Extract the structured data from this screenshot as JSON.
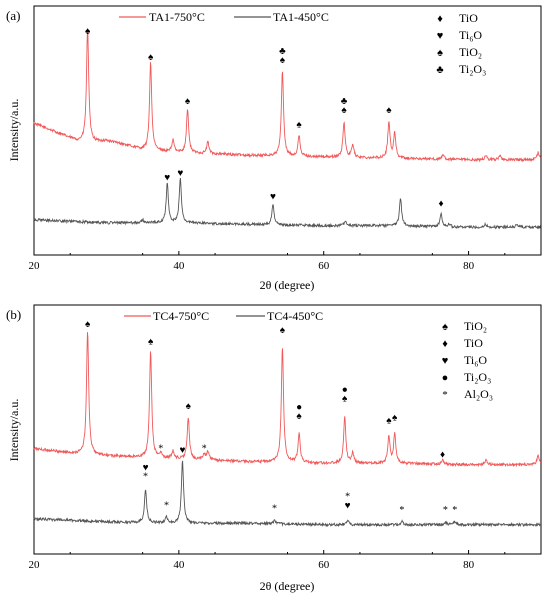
{
  "chart_data": [
    {
      "type": "line",
      "panel_label": "(a)",
      "xlabel": "2θ (degree)",
      "ylabel": "Intensity/a.u.",
      "xlim": [
        20,
        90
      ],
      "x_ticks": [
        20,
        40,
        60,
        80
      ],
      "legend": [
        {
          "name": "TA1-750°C",
          "color": "#f0595a"
        },
        {
          "name": "TA1-450°C",
          "color": "#555555"
        }
      ],
      "series": [
        {
          "name": "TA1-750°C",
          "color": "#f0595a",
          "offset": 0.72,
          "baseline": [
            [
              20,
              0.18
            ],
            [
              23,
              0.12
            ],
            [
              26,
              0.06
            ],
            [
              28,
              0.05
            ],
            [
              30,
              0.06
            ],
            [
              32,
              0.04
            ],
            [
              35,
              0.0
            ],
            [
              40,
              -0.02
            ],
            [
              50,
              -0.04
            ],
            [
              60,
              -0.05
            ],
            [
              70,
              -0.06
            ],
            [
              80,
              -0.07
            ],
            [
              90,
              -0.07
            ]
          ],
          "peaks": [
            [
              27.4,
              0.78
            ],
            [
              36.1,
              0.6
            ],
            [
              39.2,
              0.08
            ],
            [
              41.2,
              0.3
            ],
            [
              44.0,
              0.08
            ],
            [
              54.3,
              0.58
            ],
            [
              56.6,
              0.14
            ],
            [
              62.8,
              0.24
            ],
            [
              64.0,
              0.09
            ],
            [
              69.0,
              0.25
            ],
            [
              69.8,
              0.17
            ],
            [
              76.5,
              0.03
            ],
            [
              82.4,
              0.03
            ],
            [
              84.3,
              0.03
            ],
            [
              89.6,
              0.05
            ]
          ]
        },
        {
          "name": "TA1-450°C",
          "color": "#555555",
          "offset": 0.22,
          "baseline": [
            [
              20,
              0.02
            ],
            [
              30,
              0.0
            ],
            [
              40,
              0.0
            ],
            [
              50,
              -0.01
            ],
            [
              60,
              -0.02
            ],
            [
              70,
              -0.02
            ],
            [
              80,
              -0.03
            ],
            [
              90,
              -0.03
            ]
          ],
          "peaks": [
            [
              35.0,
              0.02
            ],
            [
              38.4,
              0.27
            ],
            [
              40.2,
              0.3
            ],
            [
              53.0,
              0.14
            ],
            [
              63.0,
              0.03
            ],
            [
              70.6,
              0.19
            ],
            [
              76.2,
              0.09
            ],
            [
              77.3,
              0.02
            ],
            [
              82.3,
              0.02
            ],
            [
              86.7,
              0.02
            ]
          ]
        }
      ],
      "phase_legend": [
        {
          "symbol": "♦",
          "label": "TiO"
        },
        {
          "symbol": "♥",
          "label": "Ti₆O"
        },
        {
          "symbol": "♠",
          "label": "TiO₂"
        },
        {
          "symbol": "♣",
          "label": "Ti₂O₃"
        }
      ],
      "markers": [
        {
          "x": 27.4,
          "y": 1.51,
          "symbols": [
            "♠"
          ]
        },
        {
          "x": 36.1,
          "y": 1.33,
          "symbols": [
            "♠"
          ]
        },
        {
          "x": 41.2,
          "y": 1.03,
          "symbols": [
            "♠"
          ]
        },
        {
          "x": 54.3,
          "y": 1.31,
          "symbols": [
            "♣",
            "♠"
          ]
        },
        {
          "x": 56.6,
          "y": 0.87,
          "symbols": [
            "♠"
          ]
        },
        {
          "x": 62.8,
          "y": 0.97,
          "symbols": [
            "♣",
            "♠"
          ]
        },
        {
          "x": 69.0,
          "y": 0.97,
          "symbols": [
            "♠"
          ]
        },
        {
          "x": 38.4,
          "y": 0.51,
          "symbols": [
            "♥"
          ]
        },
        {
          "x": 40.2,
          "y": 0.54,
          "symbols": [
            "♥"
          ]
        },
        {
          "x": 53.0,
          "y": 0.38,
          "symbols": [
            "♥"
          ]
        },
        {
          "x": 76.2,
          "y": 0.33,
          "symbols": [
            "♦"
          ]
        }
      ]
    },
    {
      "type": "line",
      "panel_label": "(b)",
      "xlabel": "2θ (degree)",
      "ylabel": "Intensity/a.u.",
      "xlim": [
        20,
        90
      ],
      "x_ticks": [
        20,
        40,
        60,
        80
      ],
      "legend": [
        {
          "name": "TC4-750°C",
          "color": "#f0595a"
        },
        {
          "name": "TC4-450°C",
          "color": "#555555"
        }
      ],
      "series": [
        {
          "name": "TC4-750°C",
          "color": "#f0595a",
          "offset": 0.72,
          "baseline": [
            [
              20,
              0.0
            ],
            [
              25,
              -0.03
            ],
            [
              30,
              -0.05
            ],
            [
              40,
              -0.07
            ],
            [
              50,
              -0.09
            ],
            [
              60,
              -0.1
            ],
            [
              70,
              -0.1
            ],
            [
              80,
              -0.11
            ],
            [
              90,
              -0.11
            ]
          ],
          "peaks": [
            [
              27.4,
              0.84
            ],
            [
              36.1,
              0.73
            ],
            [
              37.5,
              0.03
            ],
            [
              39.2,
              0.05
            ],
            [
              41.3,
              0.28
            ],
            [
              43.5,
              0.04
            ],
            [
              44.0,
              0.06
            ],
            [
              54.3,
              0.79
            ],
            [
              56.6,
              0.2
            ],
            [
              62.9,
              0.32
            ],
            [
              64.0,
              0.07
            ],
            [
              69.0,
              0.18
            ],
            [
              69.8,
              0.2
            ],
            [
              76.4,
              0.03
            ],
            [
              82.4,
              0.03
            ],
            [
              89.6,
              0.06
            ]
          ]
        },
        {
          "name": "TC4-450°C",
          "color": "#555555",
          "offset": 0.22,
          "baseline": [
            [
              20,
              0.02
            ],
            [
              30,
              0.0
            ],
            [
              40,
              -0.01
            ],
            [
              50,
              -0.01
            ],
            [
              60,
              -0.02
            ],
            [
              70,
              -0.02
            ],
            [
              80,
              -0.02
            ],
            [
              90,
              -0.02
            ]
          ],
          "peaks": [
            [
              35.4,
              0.23
            ],
            [
              38.3,
              0.04
            ],
            [
              40.5,
              0.43
            ],
            [
              53.2,
              0.02
            ],
            [
              63.3,
              0.03
            ],
            [
              70.8,
              0.02
            ],
            [
              76.8,
              0.02
            ],
            [
              78.1,
              0.02
            ]
          ]
        }
      ],
      "phase_legend": [
        {
          "symbol": "♠",
          "label": "TiO₂"
        },
        {
          "symbol": "♦",
          "label": "TiO"
        },
        {
          "symbol": "♥",
          "label": "Ti₆O"
        },
        {
          "symbol": "●",
          "label": "Ti₂O₃"
        },
        {
          "symbol": "*",
          "label": "Al₂O₃"
        }
      ],
      "markers": [
        {
          "x": 27.4,
          "y": 1.55,
          "symbols": [
            "♠"
          ]
        },
        {
          "x": 36.1,
          "y": 1.43,
          "symbols": [
            "♠"
          ]
        },
        {
          "x": 41.3,
          "y": 0.99,
          "symbols": [
            "♠"
          ]
        },
        {
          "x": 37.5,
          "y": 0.7,
          "symbols": [
            "*"
          ]
        },
        {
          "x": 43.5,
          "y": 0.7,
          "symbols": [
            "*"
          ]
        },
        {
          "x": 54.3,
          "y": 1.51,
          "symbols": [
            "♠"
          ]
        },
        {
          "x": 56.6,
          "y": 0.92,
          "symbols": [
            "●",
            "♠"
          ]
        },
        {
          "x": 62.9,
          "y": 1.04,
          "symbols": [
            "●",
            "♠"
          ]
        },
        {
          "x": 69.0,
          "y": 0.89,
          "symbols": [
            "♠"
          ]
        },
        {
          "x": 69.8,
          "y": 0.91,
          "symbols": [
            "♠"
          ]
        },
        {
          "x": 76.4,
          "y": 0.66,
          "symbols": [
            "♦"
          ]
        },
        {
          "x": 35.4,
          "y": 0.51,
          "symbols": [
            "♥",
            "*"
          ]
        },
        {
          "x": 38.3,
          "y": 0.31,
          "symbols": [
            "*"
          ]
        },
        {
          "x": 40.5,
          "y": 0.69,
          "symbols": [
            "♥"
          ]
        },
        {
          "x": 53.2,
          "y": 0.29,
          "symbols": [
            "*"
          ]
        },
        {
          "x": 63.3,
          "y": 0.31,
          "symbols": [
            "*",
            "♥"
          ]
        },
        {
          "x": 70.8,
          "y": 0.28,
          "symbols": [
            "*"
          ]
        },
        {
          "x": 76.8,
          "y": 0.28,
          "symbols": [
            "*"
          ]
        },
        {
          "x": 78.1,
          "y": 0.28,
          "symbols": [
            "*"
          ]
        }
      ]
    }
  ]
}
